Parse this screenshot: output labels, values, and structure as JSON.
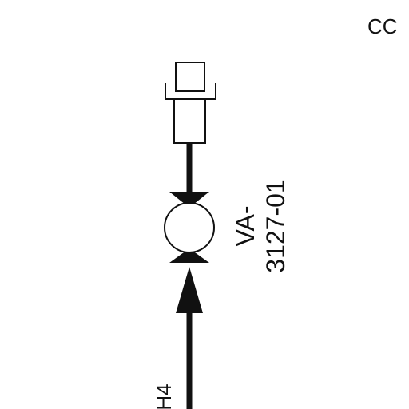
{
  "diagram": {
    "corner_text": "CC",
    "valve_tag_line1": "VA-",
    "valve_tag_line2": "3127-01",
    "line_label_partial": "H4",
    "colors": {
      "ink": "#111111",
      "background": "#ffffff"
    }
  }
}
